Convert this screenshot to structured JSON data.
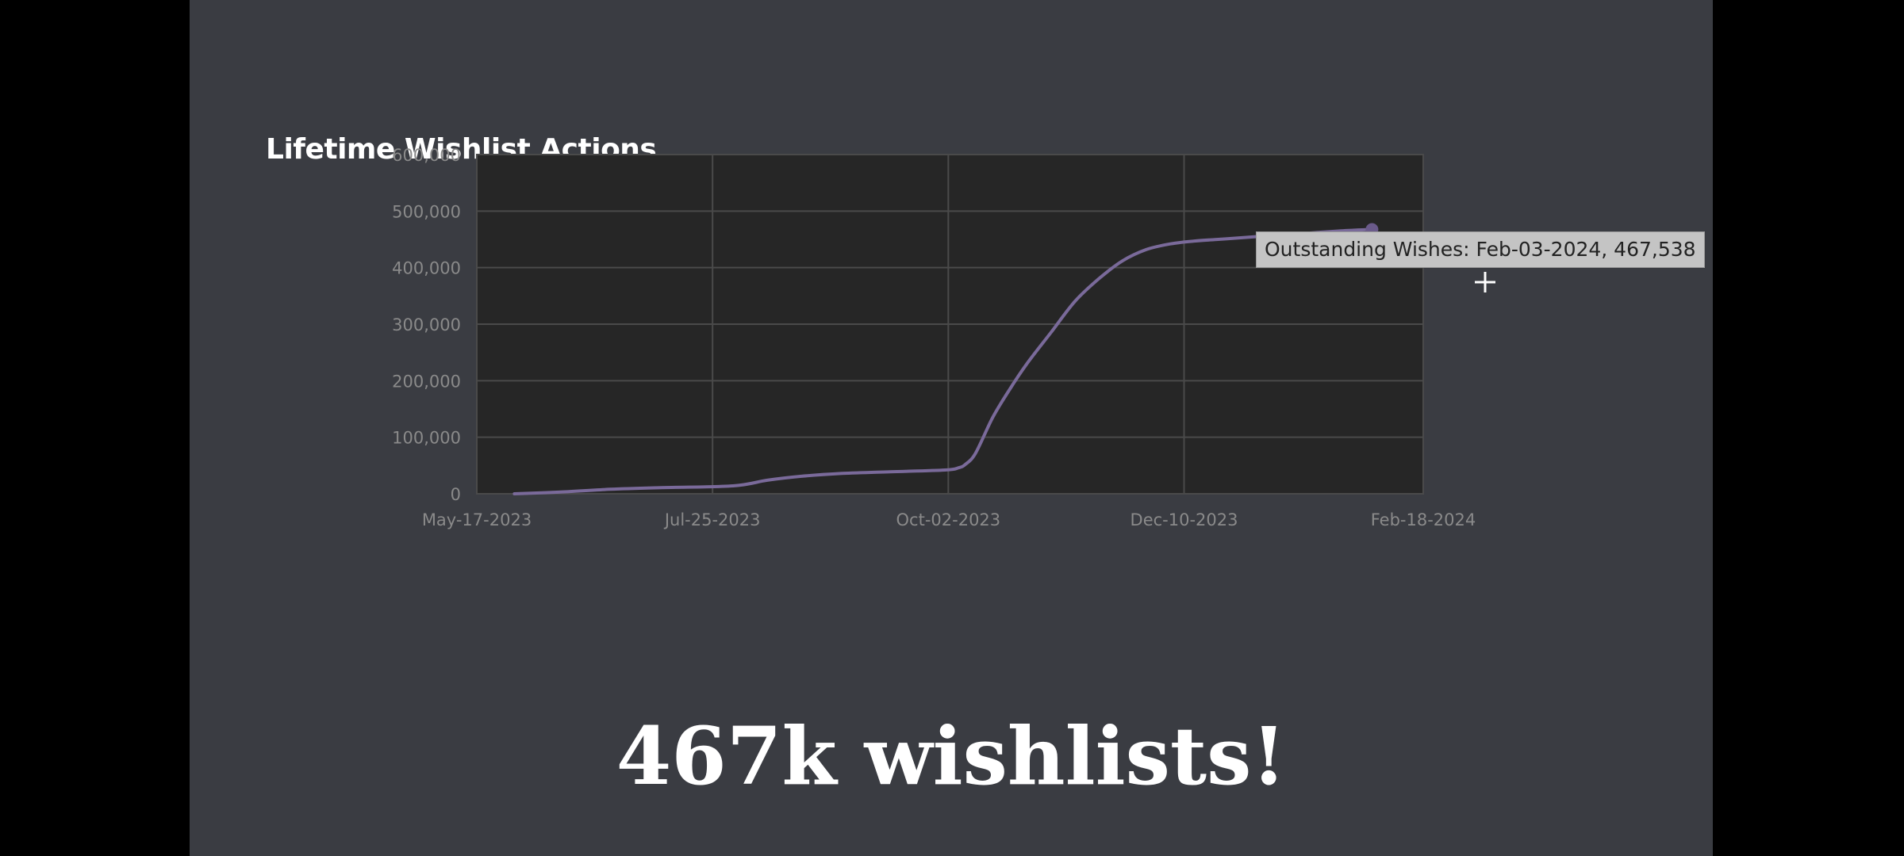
{
  "slide": {
    "caption": "467k wishlists!"
  },
  "colors": {
    "background": "#3a3c42",
    "plot_area": "#262626",
    "line": "#7a6a9a",
    "grid": "#4a4a4a",
    "text": "#ffffff",
    "tick_text": "#8a8a8a"
  },
  "tooltip": {
    "text": "Outstanding Wishes: Feb-03-2024, 467,538"
  },
  "chart_data": {
    "type": "line",
    "title": "Lifetime Wishlist Actions",
    "xlabel": "",
    "ylabel": "",
    "ylim": [
      0,
      600000
    ],
    "xlim": [
      "2023-05-17",
      "2024-02-18"
    ],
    "yticks": [
      0,
      100000,
      200000,
      300000,
      400000,
      500000,
      600000
    ],
    "ytick_labels": [
      "0",
      "100,000",
      "200,000",
      "300,000",
      "400,000",
      "500,000",
      "600,000"
    ],
    "xticks": [
      "2023-05-17",
      "2023-07-25",
      "2023-10-02",
      "2023-12-10",
      "2024-02-18"
    ],
    "xtick_labels": [
      "May-17-2023",
      "Jul-25-2023",
      "Oct-02-2023",
      "Dec-10-2023",
      "Feb-18-2024"
    ],
    "grid": true,
    "legend": "none",
    "series": [
      {
        "x": [
          "2023-05-28",
          "2023-06-10",
          "2023-06-25",
          "2023-07-10",
          "2023-07-31",
          "2023-08-10",
          "2023-08-20",
          "2023-09-01",
          "2023-09-15",
          "2023-10-01",
          "2023-10-05",
          "2023-10-07",
          "2023-10-10",
          "2023-10-15",
          "2023-10-20",
          "2023-10-25",
          "2023-11-01",
          "2023-11-08",
          "2023-11-15",
          "2023-11-22",
          "2023-11-29",
          "2023-12-06",
          "2023-12-13",
          "2023-12-20",
          "2023-12-27",
          "2024-01-05",
          "2024-01-15",
          "2024-01-25",
          "2024-02-03"
        ],
        "values": [
          0,
          3000,
          8000,
          11000,
          14000,
          24000,
          31000,
          36000,
          39000,
          42000,
          46000,
          52000,
          72000,
          135000,
          185000,
          230000,
          285000,
          340000,
          380000,
          412000,
          432000,
          442000,
          447000,
          450000,
          453000,
          457000,
          461000,
          465000,
          467538
        ]
      }
    ]
  }
}
